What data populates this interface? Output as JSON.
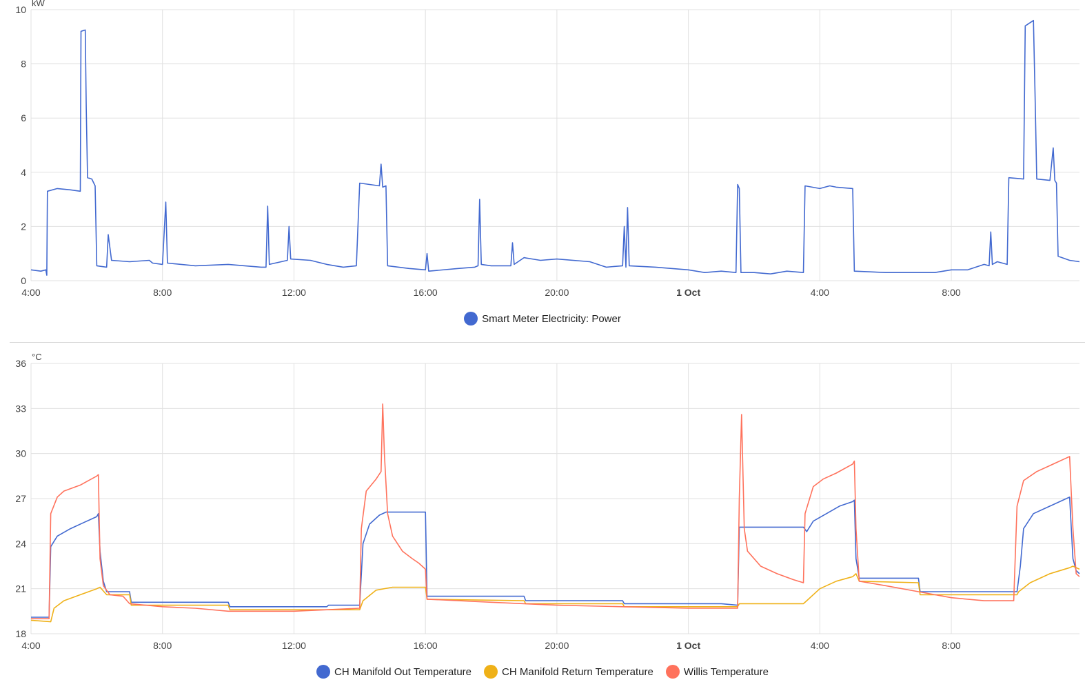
{
  "chart_data": [
    {
      "type": "line",
      "unit": "kW",
      "x_ticks": [
        "4:00",
        "8:00",
        "12:00",
        "16:00",
        "20:00",
        "1 Oct",
        "4:00",
        "8:00"
      ],
      "x_ticks_hours": [
        4,
        8,
        12,
        16,
        20,
        24,
        28,
        32
      ],
      "x_range_hours": [
        4,
        35.9
      ],
      "ylim": [
        0,
        10
      ],
      "y_ticks": [
        0,
        2,
        4,
        6,
        8,
        10
      ],
      "grid": true,
      "legend": "bottom-center",
      "series": [
        {
          "name": "Smart Meter Electricity: Power",
          "color": "#4269d0",
          "points": [
            [
              4.0,
              0.4
            ],
            [
              4.3,
              0.35
            ],
            [
              4.45,
              0.4
            ],
            [
              4.48,
              0.2
            ],
            [
              4.5,
              3.3
            ],
            [
              4.8,
              3.4
            ],
            [
              5.2,
              3.35
            ],
            [
              5.5,
              3.3
            ],
            [
              5.52,
              9.2
            ],
            [
              5.65,
              9.25
            ],
            [
              5.68,
              6.4
            ],
            [
              5.72,
              3.8
            ],
            [
              5.85,
              3.75
            ],
            [
              5.95,
              3.5
            ],
            [
              6.0,
              0.55
            ],
            [
              6.3,
              0.5
            ],
            [
              6.35,
              1.7
            ],
            [
              6.45,
              0.75
            ],
            [
              7.0,
              0.7
            ],
            [
              7.6,
              0.75
            ],
            [
              7.7,
              0.65
            ],
            [
              8.0,
              0.6
            ],
            [
              8.1,
              2.9
            ],
            [
              8.15,
              0.65
            ],
            [
              9.0,
              0.55
            ],
            [
              10.0,
              0.6
            ],
            [
              11.0,
              0.5
            ],
            [
              11.15,
              0.5
            ],
            [
              11.2,
              2.75
            ],
            [
              11.25,
              0.6
            ],
            [
              11.8,
              0.75
            ],
            [
              11.85,
              2.0
            ],
            [
              11.9,
              0.8
            ],
            [
              12.5,
              0.75
            ],
            [
              13.0,
              0.6
            ],
            [
              13.5,
              0.5
            ],
            [
              13.9,
              0.55
            ],
            [
              14.0,
              3.6
            ],
            [
              14.3,
              3.55
            ],
            [
              14.6,
              3.5
            ],
            [
              14.65,
              4.3
            ],
            [
              14.7,
              3.45
            ],
            [
              14.8,
              3.5
            ],
            [
              14.85,
              0.55
            ],
            [
              15.5,
              0.45
            ],
            [
              16.0,
              0.4
            ],
            [
              16.05,
              1.0
            ],
            [
              16.1,
              0.35
            ],
            [
              17.0,
              0.45
            ],
            [
              17.5,
              0.5
            ],
            [
              17.6,
              0.55
            ],
            [
              17.65,
              3.0
            ],
            [
              17.7,
              0.6
            ],
            [
              18.0,
              0.55
            ],
            [
              18.6,
              0.55
            ],
            [
              18.65,
              1.4
            ],
            [
              18.7,
              0.6
            ],
            [
              19.0,
              0.85
            ],
            [
              19.5,
              0.75
            ],
            [
              20.0,
              0.8
            ],
            [
              21.0,
              0.7
            ],
            [
              21.5,
              0.5
            ],
            [
              22.0,
              0.55
            ],
            [
              22.05,
              2.0
            ],
            [
              22.1,
              0.5
            ],
            [
              22.15,
              2.7
            ],
            [
              22.2,
              0.55
            ],
            [
              23.0,
              0.5
            ],
            [
              24.0,
              0.4
            ],
            [
              24.5,
              0.3
            ],
            [
              25.0,
              0.35
            ],
            [
              25.45,
              0.3
            ],
            [
              25.5,
              3.55
            ],
            [
              25.55,
              3.4
            ],
            [
              25.6,
              0.3
            ],
            [
              26.0,
              0.3
            ],
            [
              26.5,
              0.25
            ],
            [
              27.0,
              0.35
            ],
            [
              27.5,
              0.3
            ],
            [
              27.55,
              3.5
            ],
            [
              28.0,
              3.4
            ],
            [
              28.3,
              3.5
            ],
            [
              28.5,
              3.45
            ],
            [
              29.0,
              3.4
            ],
            [
              29.05,
              0.35
            ],
            [
              30.0,
              0.3
            ],
            [
              31.0,
              0.3
            ],
            [
              31.5,
              0.3
            ],
            [
              32.0,
              0.4
            ],
            [
              32.5,
              0.4
            ],
            [
              33.0,
              0.6
            ],
            [
              33.15,
              0.55
            ],
            [
              33.2,
              1.8
            ],
            [
              33.25,
              0.6
            ],
            [
              33.4,
              0.7
            ],
            [
              33.7,
              0.6
            ],
            [
              33.75,
              3.8
            ],
            [
              34.2,
              3.75
            ],
            [
              34.25,
              9.4
            ],
            [
              34.5,
              9.6
            ],
            [
              34.55,
              6.8
            ],
            [
              34.6,
              3.75
            ],
            [
              35.0,
              3.7
            ],
            [
              35.1,
              4.9
            ],
            [
              35.15,
              3.7
            ],
            [
              35.2,
              3.6
            ],
            [
              35.25,
              0.9
            ],
            [
              35.6,
              0.75
            ],
            [
              35.9,
              0.7
            ]
          ]
        }
      ]
    },
    {
      "type": "line",
      "unit": "°C",
      "x_ticks": [
        "4:00",
        "8:00",
        "12:00",
        "16:00",
        "20:00",
        "1 Oct",
        "4:00",
        "8:00"
      ],
      "x_ticks_hours": [
        4,
        8,
        12,
        16,
        20,
        24,
        28,
        32
      ],
      "x_range_hours": [
        4,
        35.9
      ],
      "ylim": [
        18,
        36
      ],
      "y_ticks": [
        18,
        21,
        24,
        27,
        30,
        33,
        36
      ],
      "grid": true,
      "legend": "bottom-center",
      "series": [
        {
          "name": "CH Manifold Out Temperature",
          "color": "#4269d0",
          "points": [
            [
              4.0,
              19.1
            ],
            [
              4.55,
              19.1
            ],
            [
              4.6,
              23.8
            ],
            [
              4.8,
              24.5
            ],
            [
              5.2,
              25.0
            ],
            [
              5.6,
              25.4
            ],
            [
              6.0,
              25.8
            ],
            [
              6.05,
              26.0
            ],
            [
              6.1,
              23.5
            ],
            [
              6.2,
              21.5
            ],
            [
              6.3,
              20.8
            ],
            [
              7.0,
              20.8
            ],
            [
              7.05,
              20.1
            ],
            [
              10.0,
              20.1
            ],
            [
              10.05,
              19.8
            ],
            [
              13.0,
              19.8
            ],
            [
              13.05,
              19.9
            ],
            [
              14.0,
              19.9
            ],
            [
              14.1,
              24.0
            ],
            [
              14.3,
              25.3
            ],
            [
              14.6,
              25.9
            ],
            [
              14.8,
              26.1
            ],
            [
              16.0,
              26.1
            ],
            [
              16.05,
              20.5
            ],
            [
              19.0,
              20.5
            ],
            [
              19.05,
              20.2
            ],
            [
              22.0,
              20.2
            ],
            [
              22.05,
              20.0
            ],
            [
              25.0,
              20.0
            ],
            [
              25.5,
              19.9
            ],
            [
              25.55,
              25.1
            ],
            [
              27.5,
              25.1
            ],
            [
              27.6,
              24.8
            ],
            [
              27.8,
              25.5
            ],
            [
              28.2,
              26.0
            ],
            [
              28.6,
              26.5
            ],
            [
              29.0,
              26.8
            ],
            [
              29.05,
              26.9
            ],
            [
              29.1,
              23.0
            ],
            [
              29.2,
              21.7
            ],
            [
              31.0,
              21.7
            ],
            [
              31.05,
              20.8
            ],
            [
              34.0,
              20.8
            ],
            [
              34.1,
              22.5
            ],
            [
              34.2,
              25.0
            ],
            [
              34.5,
              26.0
            ],
            [
              35.0,
              26.5
            ],
            [
              35.5,
              27.0
            ],
            [
              35.6,
              27.1
            ],
            [
              35.7,
              23.0
            ],
            [
              35.8,
              22.2
            ],
            [
              35.9,
              22.0
            ]
          ]
        },
        {
          "name": "CH Manifold Return Temperature",
          "color": "#efb118",
          "points": [
            [
              4.0,
              18.9
            ],
            [
              4.6,
              18.8
            ],
            [
              4.7,
              19.7
            ],
            [
              5.0,
              20.2
            ],
            [
              5.5,
              20.6
            ],
            [
              6.0,
              21.0
            ],
            [
              6.1,
              21.1
            ],
            [
              6.3,
              20.6
            ],
            [
              7.0,
              20.6
            ],
            [
              7.05,
              19.9
            ],
            [
              10.0,
              19.9
            ],
            [
              10.05,
              19.6
            ],
            [
              14.0,
              19.6
            ],
            [
              14.1,
              20.2
            ],
            [
              14.5,
              20.9
            ],
            [
              15.0,
              21.1
            ],
            [
              16.0,
              21.1
            ],
            [
              16.05,
              20.3
            ],
            [
              19.0,
              20.2
            ],
            [
              19.05,
              20.0
            ],
            [
              22.0,
              20.0
            ],
            [
              22.05,
              19.8
            ],
            [
              25.5,
              19.8
            ],
            [
              25.55,
              20.0
            ],
            [
              27.5,
              20.0
            ],
            [
              27.6,
              20.2
            ],
            [
              28.0,
              21.0
            ],
            [
              28.5,
              21.5
            ],
            [
              29.0,
              21.8
            ],
            [
              29.1,
              22.0
            ],
            [
              29.2,
              21.5
            ],
            [
              31.0,
              21.4
            ],
            [
              31.05,
              20.6
            ],
            [
              34.0,
              20.6
            ],
            [
              34.05,
              20.8
            ],
            [
              34.4,
              21.4
            ],
            [
              35.0,
              22.0
            ],
            [
              35.6,
              22.4
            ],
            [
              35.7,
              22.5
            ],
            [
              35.9,
              22.3
            ]
          ]
        },
        {
          "name": "Willis Temperature",
          "color": "#ff725c",
          "points": [
            [
              4.0,
              19.0
            ],
            [
              4.55,
              19.0
            ],
            [
              4.6,
              26.0
            ],
            [
              4.8,
              27.1
            ],
            [
              5.0,
              27.5
            ],
            [
              5.5,
              27.9
            ],
            [
              6.0,
              28.5
            ],
            [
              6.05,
              28.6
            ],
            [
              6.1,
              23.0
            ],
            [
              6.2,
              21.2
            ],
            [
              6.4,
              20.6
            ],
            [
              6.8,
              20.5
            ],
            [
              7.0,
              20.0
            ],
            [
              8.0,
              19.8
            ],
            [
              9.0,
              19.7
            ],
            [
              10.0,
              19.5
            ],
            [
              12.0,
              19.5
            ],
            [
              13.0,
              19.6
            ],
            [
              14.0,
              19.7
            ],
            [
              14.05,
              25.0
            ],
            [
              14.2,
              27.5
            ],
            [
              14.5,
              28.3
            ],
            [
              14.65,
              28.8
            ],
            [
              14.7,
              33.3
            ],
            [
              14.75,
              30.0
            ],
            [
              14.85,
              26.0
            ],
            [
              15.0,
              24.5
            ],
            [
              15.3,
              23.5
            ],
            [
              15.6,
              23.0
            ],
            [
              15.8,
              22.7
            ],
            [
              16.0,
              22.3
            ],
            [
              16.05,
              20.3
            ],
            [
              18.0,
              20.1
            ],
            [
              20.0,
              19.9
            ],
            [
              22.0,
              19.8
            ],
            [
              24.0,
              19.7
            ],
            [
              25.5,
              19.7
            ],
            [
              25.55,
              27.0
            ],
            [
              25.62,
              32.6
            ],
            [
              25.7,
              25.0
            ],
            [
              25.8,
              23.5
            ],
            [
              26.2,
              22.5
            ],
            [
              26.7,
              22.0
            ],
            [
              27.2,
              21.6
            ],
            [
              27.5,
              21.4
            ],
            [
              27.55,
              26.0
            ],
            [
              27.8,
              27.8
            ],
            [
              28.1,
              28.3
            ],
            [
              28.5,
              28.7
            ],
            [
              29.0,
              29.3
            ],
            [
              29.05,
              29.5
            ],
            [
              29.1,
              25.0
            ],
            [
              29.2,
              21.5
            ],
            [
              30.0,
              21.2
            ],
            [
              31.0,
              20.8
            ],
            [
              32.0,
              20.4
            ],
            [
              33.0,
              20.2
            ],
            [
              33.9,
              20.2
            ],
            [
              34.0,
              26.5
            ],
            [
              34.2,
              28.2
            ],
            [
              34.6,
              28.8
            ],
            [
              35.0,
              29.2
            ],
            [
              35.5,
              29.7
            ],
            [
              35.6,
              29.8
            ],
            [
              35.7,
              25.0
            ],
            [
              35.8,
              22.0
            ],
            [
              35.9,
              21.8
            ]
          ]
        }
      ]
    }
  ]
}
